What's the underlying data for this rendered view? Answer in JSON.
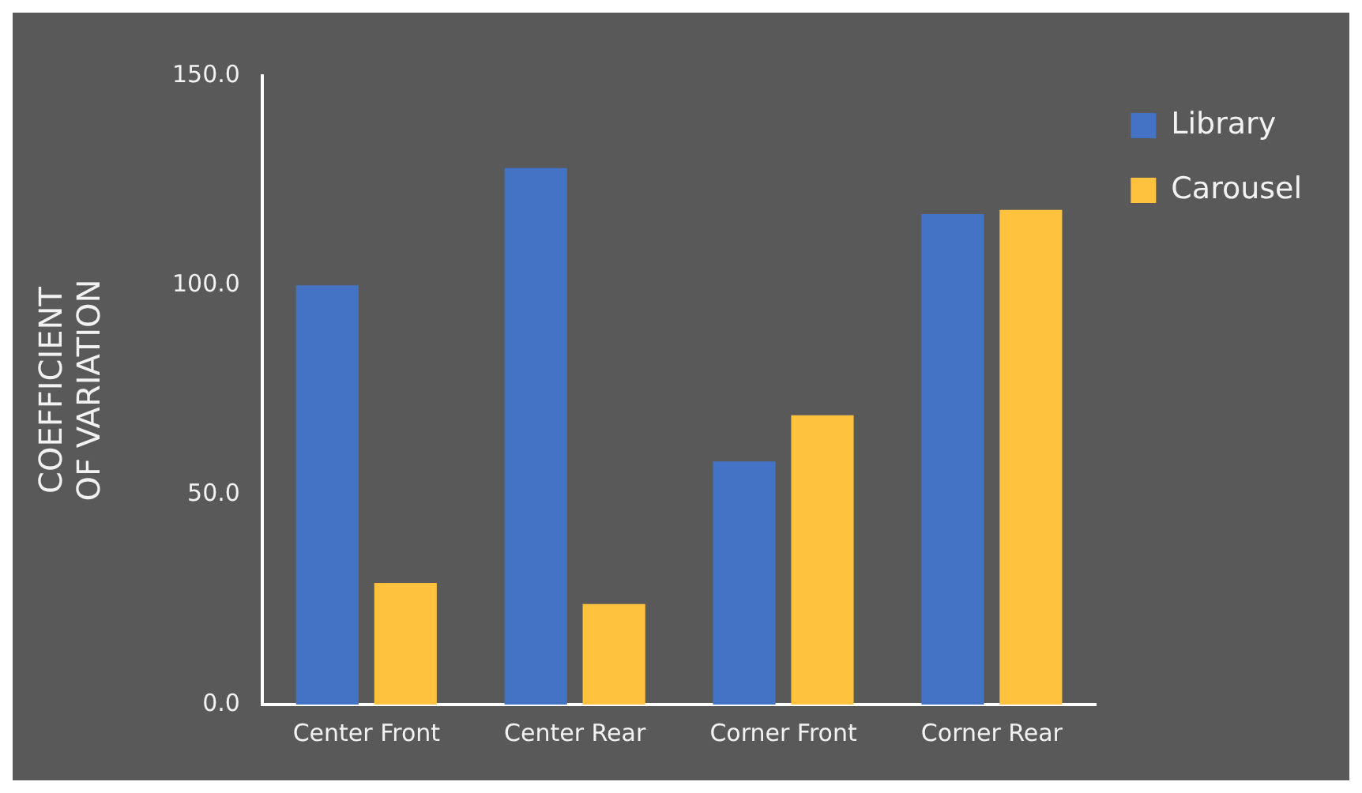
{
  "chart_data": {
    "type": "bar",
    "ylabel": "COEFFICIENT\nOF VARIATION",
    "categories": [
      "Center Front",
      "Center Rear",
      "Corner Front",
      "Corner Rear"
    ],
    "series": [
      {
        "name": "Library",
        "color": "#4472c4",
        "values": [
          100,
          128,
          58,
          117
        ]
      },
      {
        "name": "Carousel",
        "color": "#ffc23f",
        "values": [
          29,
          24,
          69,
          118
        ]
      }
    ],
    "ylim": [
      0,
      150
    ],
    "yticks": [
      {
        "value": 0,
        "label": "0.0"
      },
      {
        "value": 50,
        "label": "50.0"
      },
      {
        "value": 100,
        "label": "100.0"
      },
      {
        "value": 150,
        "label": "150.0"
      }
    ],
    "grid": false,
    "legend": "top right"
  }
}
